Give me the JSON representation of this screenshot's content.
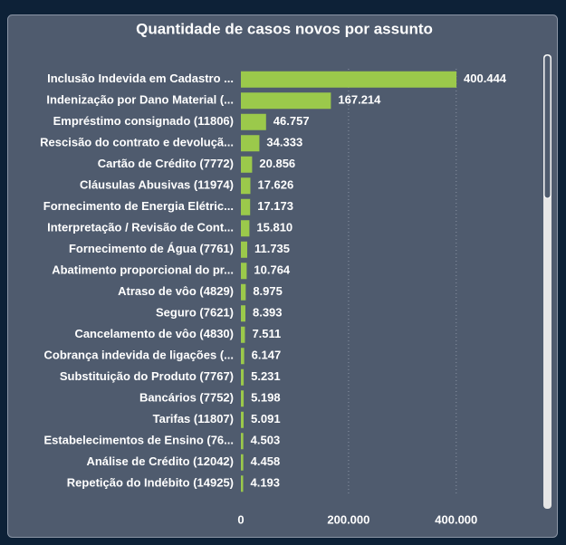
{
  "chart_data": {
    "type": "bar",
    "orientation": "horizontal",
    "title": "Quantidade de casos novos por assunto",
    "categories": [
      "Inclusão Indevida em Cadastro ...",
      "Indenização por Dano Material (...",
      "Empréstimo consignado (11806)",
      "Rescisão do contrato e devoluçã...",
      "Cartão de Crédito (7772)",
      "Cláusulas Abusivas (11974)",
      "Fornecimento de Energia Elétric...",
      "Interpretação / Revisão de Cont...",
      "Fornecimento de Água (7761)",
      "Abatimento proporcional do pr...",
      "Atraso de vôo (4829)",
      "Seguro (7621)",
      "Cancelamento de vôo (4830)",
      "Cobrança indevida de ligações (...",
      "Substituição do Produto (7767)",
      "Bancários (7752)",
      "Tarifas (11807)",
      "Estabelecimentos de Ensino (76...",
      "Análise de Crédito (12042)",
      "Repetição do Indébito (14925)"
    ],
    "values": [
      400444,
      167214,
      46757,
      34333,
      20856,
      17626,
      17173,
      15810,
      11735,
      10764,
      8975,
      8393,
      7511,
      6147,
      5231,
      5198,
      5091,
      4503,
      4458,
      4193
    ],
    "value_labels": [
      "400.444",
      "167.214",
      "46.757",
      "34.333",
      "20.856",
      "17.626",
      "17.173",
      "15.810",
      "11.735",
      "10.764",
      "8.975",
      "8.393",
      "7.511",
      "6.147",
      "5.231",
      "5.198",
      "5.091",
      "4.503",
      "4.458",
      "4.193"
    ],
    "color": "#9bc94b",
    "xlim": [
      0,
      540000
    ],
    "xticks": [
      0,
      {
        "value": 200000,
        "label": "200.000"
      },
      {
        "value": 400000,
        "label": "400.000"
      }
    ],
    "grid": true
  }
}
